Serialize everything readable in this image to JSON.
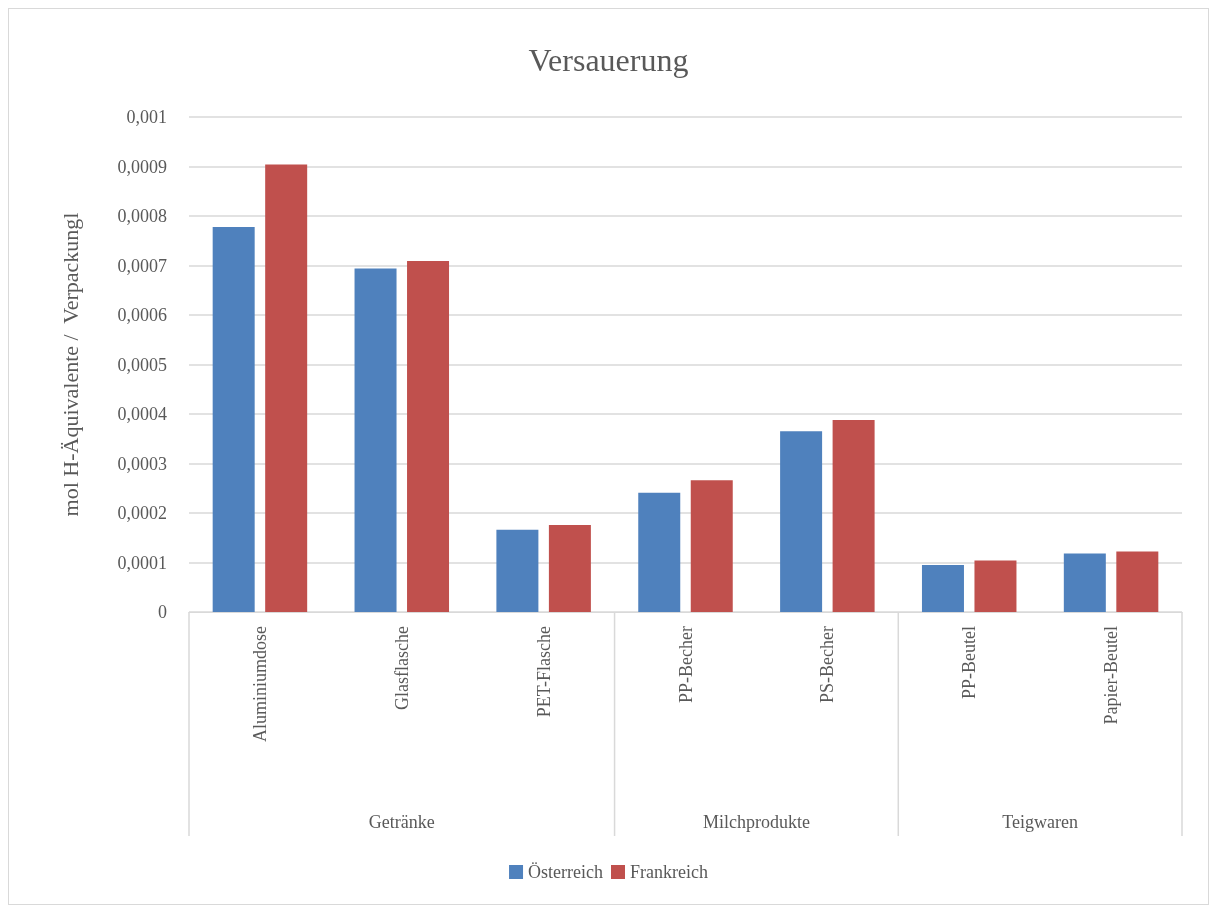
{
  "chart_data": {
    "type": "bar",
    "title": "Versauerung",
    "ylabel": "mol H-Äquivalente /  Verpackungl",
    "categories": [
      "Aluminiumdose",
      "Glasflasche",
      "PET-Flasche",
      "PP-Becher",
      "PS-Becher",
      "PP-Beutel",
      "Papier-Beutel"
    ],
    "annotations": [
      "Getränke",
      "Milchprodukte",
      "Teigwaren"
    ],
    "series": [
      {
        "name": "Österreich",
        "color": "#4f81bd",
        "values": [
          0.000778,
          0.000694,
          0.000166,
          0.000241,
          0.000365,
          9.5e-05,
          0.000118
        ]
      },
      {
        "name": "Frankreich",
        "color": "#c0504d",
        "values": [
          0.000904,
          0.000709,
          0.000176,
          0.000266,
          0.000388,
          0.000104,
          0.000122
        ]
      }
    ],
    "ylim": [
      0,
      0.001
    ],
    "yticks": [
      0,
      {
        "value": 0.0001,
        "label": "0,0001"
      },
      {
        "value": 0.0002,
        "label": "0,0002"
      },
      {
        "value": 0.0003,
        "label": "0,0003"
      },
      {
        "value": 0.0004,
        "label": "0,0004"
      },
      {
        "value": 0.0005,
        "label": "0,0005"
      },
      {
        "value": 0.0006,
        "label": "0,0006"
      },
      {
        "value": 0.0007,
        "label": "0,0007"
      },
      {
        "value": 0.0008,
        "label": "0,0008"
      },
      {
        "value": 0.0009,
        "label": "0,0009"
      },
      {
        "value": 0.001,
        "label": "0,001"
      }
    ],
    "grid": true,
    "legend": "bottom"
  }
}
